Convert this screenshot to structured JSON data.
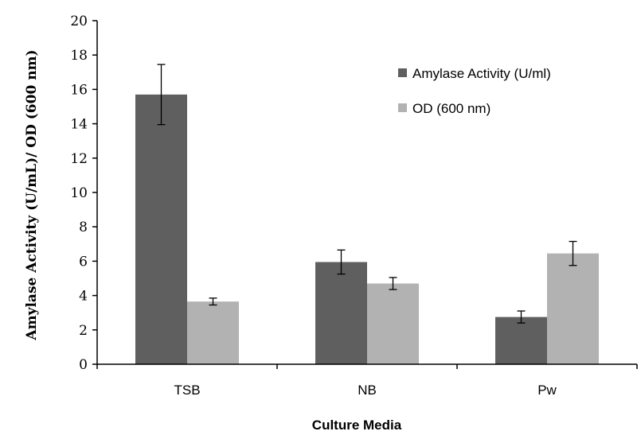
{
  "chart_data": {
    "type": "bar",
    "categories": [
      "TSB",
      "NB",
      "Pw"
    ],
    "series": [
      {
        "name": "Amylase Activity (U/ml)",
        "color": "#5f5f5f",
        "values": [
          15.7,
          5.95,
          2.75
        ],
        "errors": [
          1.75,
          0.7,
          0.35
        ]
      },
      {
        "name": "OD (600 nm)",
        "color": "#b2b2b2",
        "values": [
          3.65,
          4.7,
          6.45
        ],
        "errors": [
          0.2,
          0.35,
          0.7
        ]
      }
    ],
    "xlabel": "Culture Media",
    "ylabel": "Amylase Activity (U/mL)/ OD (600 nm)",
    "ylim": [
      0,
      20
    ],
    "yticks": [
      0,
      2,
      4,
      6,
      8,
      10,
      12,
      14,
      16,
      18,
      20
    ],
    "grid": false,
    "legend_position": "top-right"
  }
}
